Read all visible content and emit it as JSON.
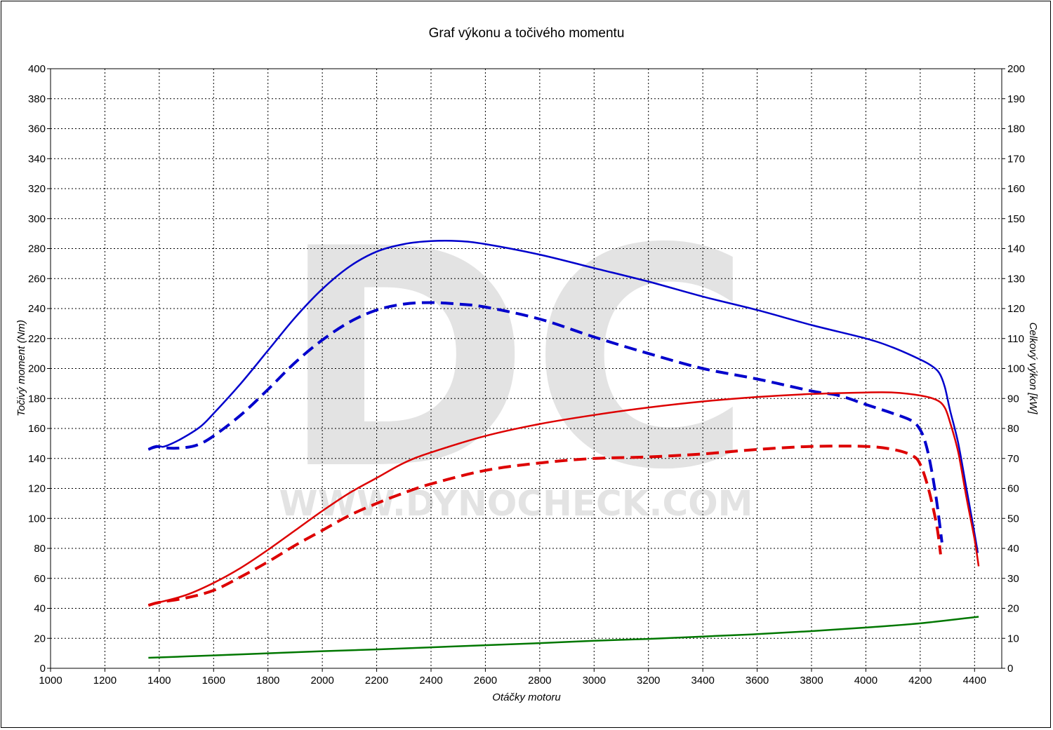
{
  "chart_data": {
    "type": "line",
    "title": "Graf výkonu a točivého momentu",
    "xlabel": "Otáčky motoru",
    "ylabel": "Točivý moment (Nm)",
    "y2label": "Celkový výkon [kW]",
    "watermark": {
      "logo": "DC",
      "site": "WWW.DYNOCHECK.COM"
    },
    "xlim": [
      1000,
      4500
    ],
    "ylim": [
      0,
      400
    ],
    "y2lim": [
      0,
      200
    ],
    "xticks": [
      1000,
      1200,
      1400,
      1600,
      1800,
      2000,
      2200,
      2400,
      2600,
      2800,
      3000,
      3200,
      3400,
      3600,
      3800,
      4000,
      4200,
      4400
    ],
    "yticks": [
      0,
      20,
      40,
      60,
      80,
      100,
      120,
      140,
      160,
      180,
      200,
      220,
      240,
      260,
      280,
      300,
      320,
      340,
      360,
      380,
      400
    ],
    "y2ticks": [
      0,
      10,
      20,
      30,
      40,
      50,
      60,
      70,
      80,
      90,
      100,
      110,
      120,
      130,
      140,
      150,
      160,
      170,
      180,
      190,
      200
    ],
    "grid": true,
    "series": [
      {
        "axis": "left",
        "color": "#0000cc",
        "style": "solid",
        "points": [
          [
            1360,
            146
          ],
          [
            1400,
            148
          ],
          [
            1420,
            148
          ],
          [
            1480,
            153
          ],
          [
            1550,
            161
          ],
          [
            1600,
            170
          ],
          [
            1700,
            190
          ],
          [
            1800,
            212
          ],
          [
            1900,
            234
          ],
          [
            2000,
            253
          ],
          [
            2100,
            268
          ],
          [
            2200,
            278
          ],
          [
            2300,
            283
          ],
          [
            2400,
            285
          ],
          [
            2500,
            285
          ],
          [
            2600,
            283
          ],
          [
            2800,
            276
          ],
          [
            3000,
            267
          ],
          [
            3200,
            258
          ],
          [
            3400,
            248
          ],
          [
            3600,
            239
          ],
          [
            3800,
            229
          ],
          [
            4000,
            220
          ],
          [
            4100,
            214
          ],
          [
            4200,
            206
          ],
          [
            4240,
            202
          ],
          [
            4270,
            197
          ],
          [
            4290,
            188
          ],
          [
            4310,
            172
          ],
          [
            4340,
            150
          ],
          [
            4370,
            120
          ],
          [
            4395,
            95
          ],
          [
            4412,
            77
          ]
        ]
      },
      {
        "axis": "left",
        "color": "#0000cc",
        "style": "dashed",
        "points": [
          [
            1360,
            146
          ],
          [
            1390,
            148
          ],
          [
            1420,
            147
          ],
          [
            1480,
            147
          ],
          [
            1540,
            149
          ],
          [
            1600,
            155
          ],
          [
            1700,
            169
          ],
          [
            1800,
            186
          ],
          [
            1900,
            204
          ],
          [
            2000,
            219
          ],
          [
            2100,
            231
          ],
          [
            2200,
            239
          ],
          [
            2300,
            243
          ],
          [
            2400,
            244
          ],
          [
            2500,
            243
          ],
          [
            2600,
            241
          ],
          [
            2800,
            233
          ],
          [
            3000,
            221
          ],
          [
            3200,
            210
          ],
          [
            3400,
            200
          ],
          [
            3600,
            193
          ],
          [
            3800,
            185
          ],
          [
            3900,
            182
          ],
          [
            4000,
            176
          ],
          [
            4100,
            170
          ],
          [
            4170,
            165
          ],
          [
            4200,
            159
          ],
          [
            4220,
            150
          ],
          [
            4240,
            134
          ],
          [
            4260,
            112
          ],
          [
            4280,
            84
          ]
        ]
      },
      {
        "axis": "right",
        "color": "#dd0000",
        "style": "solid",
        "points": [
          [
            1360,
            21
          ],
          [
            1400,
            22
          ],
          [
            1500,
            24.5
          ],
          [
            1600,
            28.5
          ],
          [
            1700,
            33.5
          ],
          [
            1800,
            39.5
          ],
          [
            1900,
            46
          ],
          [
            2000,
            52.5
          ],
          [
            2100,
            58.5
          ],
          [
            2200,
            63.5
          ],
          [
            2300,
            68.5
          ],
          [
            2400,
            72
          ],
          [
            2600,
            77.5
          ],
          [
            2800,
            81.5
          ],
          [
            3000,
            84.5
          ],
          [
            3200,
            87
          ],
          [
            3400,
            89
          ],
          [
            3600,
            90.5
          ],
          [
            3800,
            91.5
          ],
          [
            4000,
            92
          ],
          [
            4100,
            92
          ],
          [
            4200,
            91
          ],
          [
            4260,
            89.5
          ],
          [
            4290,
            87
          ],
          [
            4310,
            82
          ],
          [
            4340,
            72
          ],
          [
            4370,
            57
          ],
          [
            4400,
            43
          ],
          [
            4415,
            34
          ]
        ]
      },
      {
        "axis": "right",
        "color": "#dd0000",
        "style": "dashed",
        "points": [
          [
            1360,
            21
          ],
          [
            1400,
            22
          ],
          [
            1500,
            23.5
          ],
          [
            1600,
            26
          ],
          [
            1700,
            30.5
          ],
          [
            1800,
            35.5
          ],
          [
            1900,
            41
          ],
          [
            2000,
            46
          ],
          [
            2100,
            51
          ],
          [
            2200,
            55
          ],
          [
            2300,
            58.5
          ],
          [
            2400,
            61.5
          ],
          [
            2600,
            66
          ],
          [
            2800,
            68.5
          ],
          [
            3000,
            70
          ],
          [
            3200,
            70.5
          ],
          [
            3400,
            71.5
          ],
          [
            3600,
            73
          ],
          [
            3800,
            74
          ],
          [
            4000,
            74
          ],
          [
            4100,
            73
          ],
          [
            4170,
            71
          ],
          [
            4200,
            68
          ],
          [
            4230,
            60
          ],
          [
            4260,
            48
          ],
          [
            4275,
            38
          ]
        ]
      },
      {
        "axis": "right",
        "color": "#007700",
        "style": "solid",
        "points": [
          [
            1360,
            3.5
          ],
          [
            1600,
            4.3
          ],
          [
            1800,
            5
          ],
          [
            2000,
            5.7
          ],
          [
            2200,
            6.3
          ],
          [
            2400,
            7
          ],
          [
            2600,
            7.7
          ],
          [
            2800,
            8.4
          ],
          [
            3000,
            9.2
          ],
          [
            3200,
            9.8
          ],
          [
            3400,
            10.6
          ],
          [
            3600,
            11.4
          ],
          [
            3800,
            12.4
          ],
          [
            4000,
            13.6
          ],
          [
            4200,
            15
          ],
          [
            4415,
            17.2
          ]
        ]
      }
    ]
  }
}
